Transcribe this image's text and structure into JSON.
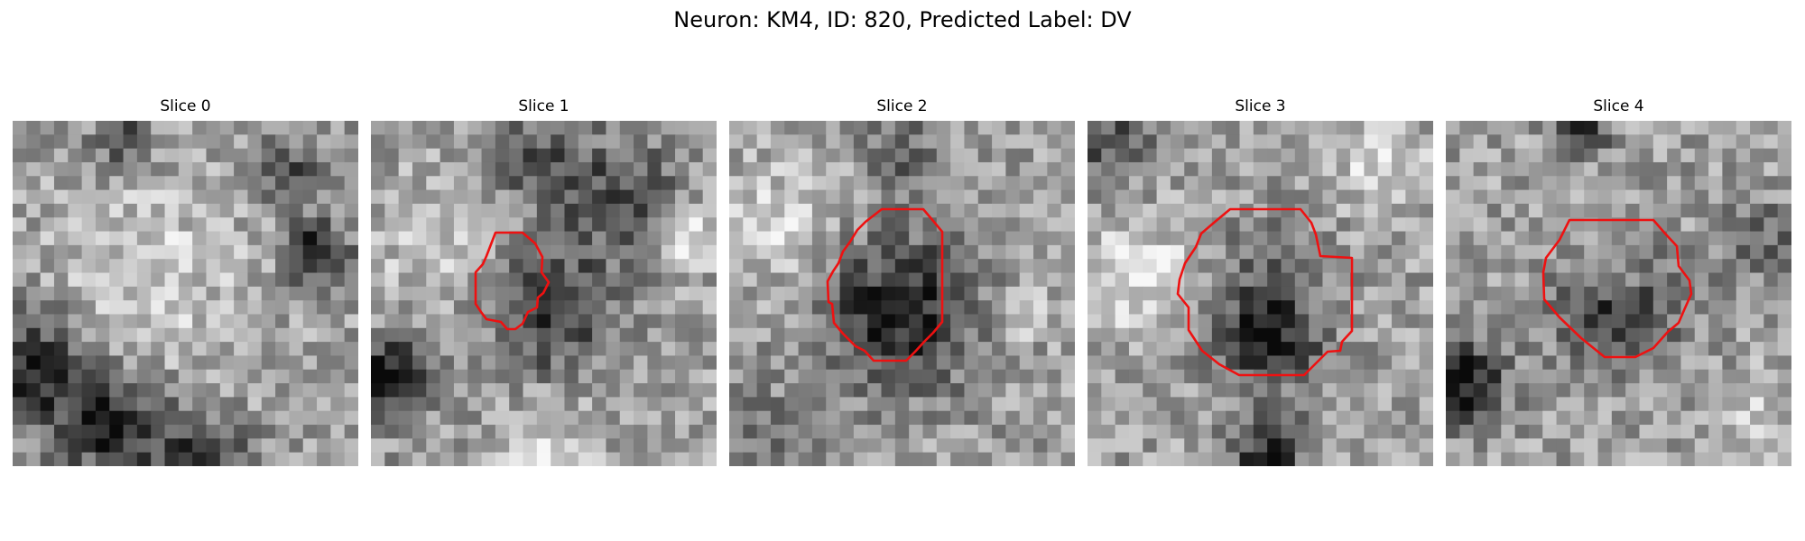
{
  "figure": {
    "title": "Neuron: KM4, ID: 820, Predicted Label: DV"
  },
  "panels": [
    {
      "title": "Slice 0",
      "has_outline": false
    },
    {
      "title": "Slice 1",
      "has_outline": true
    },
    {
      "title": "Slice 2",
      "has_outline": true
    },
    {
      "title": "Slice 3",
      "has_outline": true
    },
    {
      "title": "Slice 4",
      "has_outline": true
    }
  ],
  "colors": {
    "outline": "#ee1111",
    "background": "#ffffff"
  },
  "colormap": "gray"
}
